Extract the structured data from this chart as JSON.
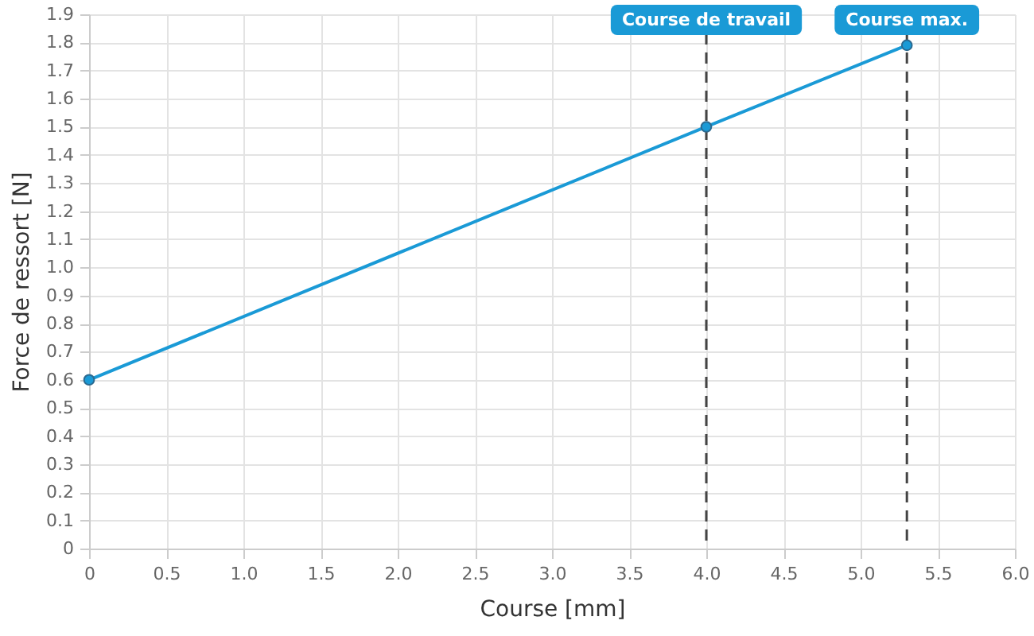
{
  "chart_data": {
    "type": "line",
    "xlabel": "Course [mm]",
    "ylabel": "Force de ressort [N]",
    "x": [
      0,
      4,
      5.3
    ],
    "series": [
      {
        "color": "#1a9ad6",
        "values": [
          0.6,
          1.5,
          1.79
        ]
      }
    ],
    "xlim": [
      0,
      6
    ],
    "ylim": [
      0,
      1.9
    ],
    "xticks": [
      0,
      0.5,
      {
        "value": 1,
        "label": "1.0"
      },
      1.5,
      {
        "value": 2,
        "label": "2.0"
      },
      2.5,
      {
        "value": 3,
        "label": "3.0"
      },
      3.5,
      {
        "value": 4,
        "label": "4.0"
      },
      4.5,
      {
        "value": 5,
        "label": "5.0"
      },
      5.5,
      {
        "value": 6,
        "label": "6.0"
      }
    ],
    "yticks": [
      0,
      0.1,
      0.2,
      0.3,
      0.4,
      0.5,
      0.6,
      0.7,
      0.8,
      0.9,
      {
        "value": 1,
        "label": "1.0"
      },
      1.1,
      1.2,
      1.3,
      1.4,
      1.5,
      1.6,
      1.7,
      1.8,
      1.9
    ],
    "grid": true,
    "marker": "circle",
    "ref_lines": [
      {
        "axis": "x",
        "value": 4,
        "label": "Course de travail",
        "color": "#444444",
        "line_style": "dashed"
      },
      {
        "axis": "x",
        "value": 5.3,
        "label": "Course max.",
        "color": "#444444",
        "line_style": "dashed"
      }
    ]
  }
}
